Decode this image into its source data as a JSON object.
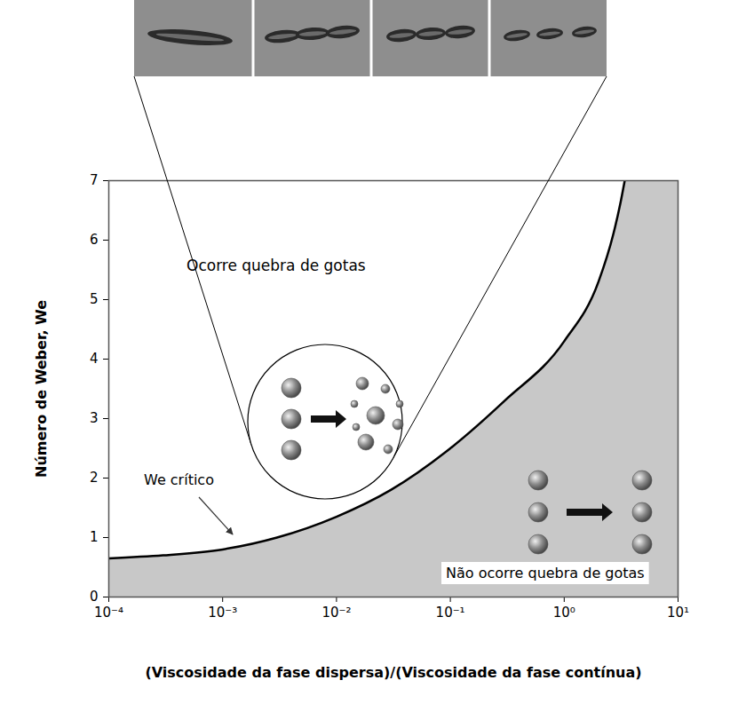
{
  "chart_data": {
    "type": "line",
    "x_label": "(Viscosidade da fase dispersa)/(Viscosidade da fase contínua)",
    "y_label": "Número de Weber, We",
    "log": "x",
    "grid": false,
    "xlim": [
      0.0001,
      10
    ],
    "ylim": [
      0,
      7
    ],
    "xticks": [
      {
        "value": 0.0001,
        "label": "10⁻⁴"
      },
      {
        "value": 0.001,
        "label": "10⁻³"
      },
      {
        "value": 0.01,
        "label": "10⁻²"
      },
      {
        "value": 0.1,
        "label": "10⁻¹"
      },
      {
        "value": 1,
        "label": "10⁰"
      },
      {
        "value": 10,
        "label": "10¹"
      }
    ],
    "yticks": [
      0,
      1,
      2,
      3,
      4,
      5,
      6,
      7
    ],
    "x": [
      0.0001,
      0.0003,
      0.001,
      0.003,
      0.01,
      0.03,
      0.1,
      0.3,
      1,
      2,
      2.7,
      3.1,
      3.4
    ],
    "series": [
      {
        "name": "We crítico",
        "color": "#000000",
        "values": [
          0.65,
          0.7,
          0.8,
          1.0,
          1.35,
          1.8,
          2.5,
          3.3,
          4.3,
          5.3,
          6.1,
          6.6,
          7.0
        ]
      }
    ],
    "annotations": [
      "Ocorre quebra de gotas",
      "Não ocorre quebra de gotas"
    ]
  }
}
